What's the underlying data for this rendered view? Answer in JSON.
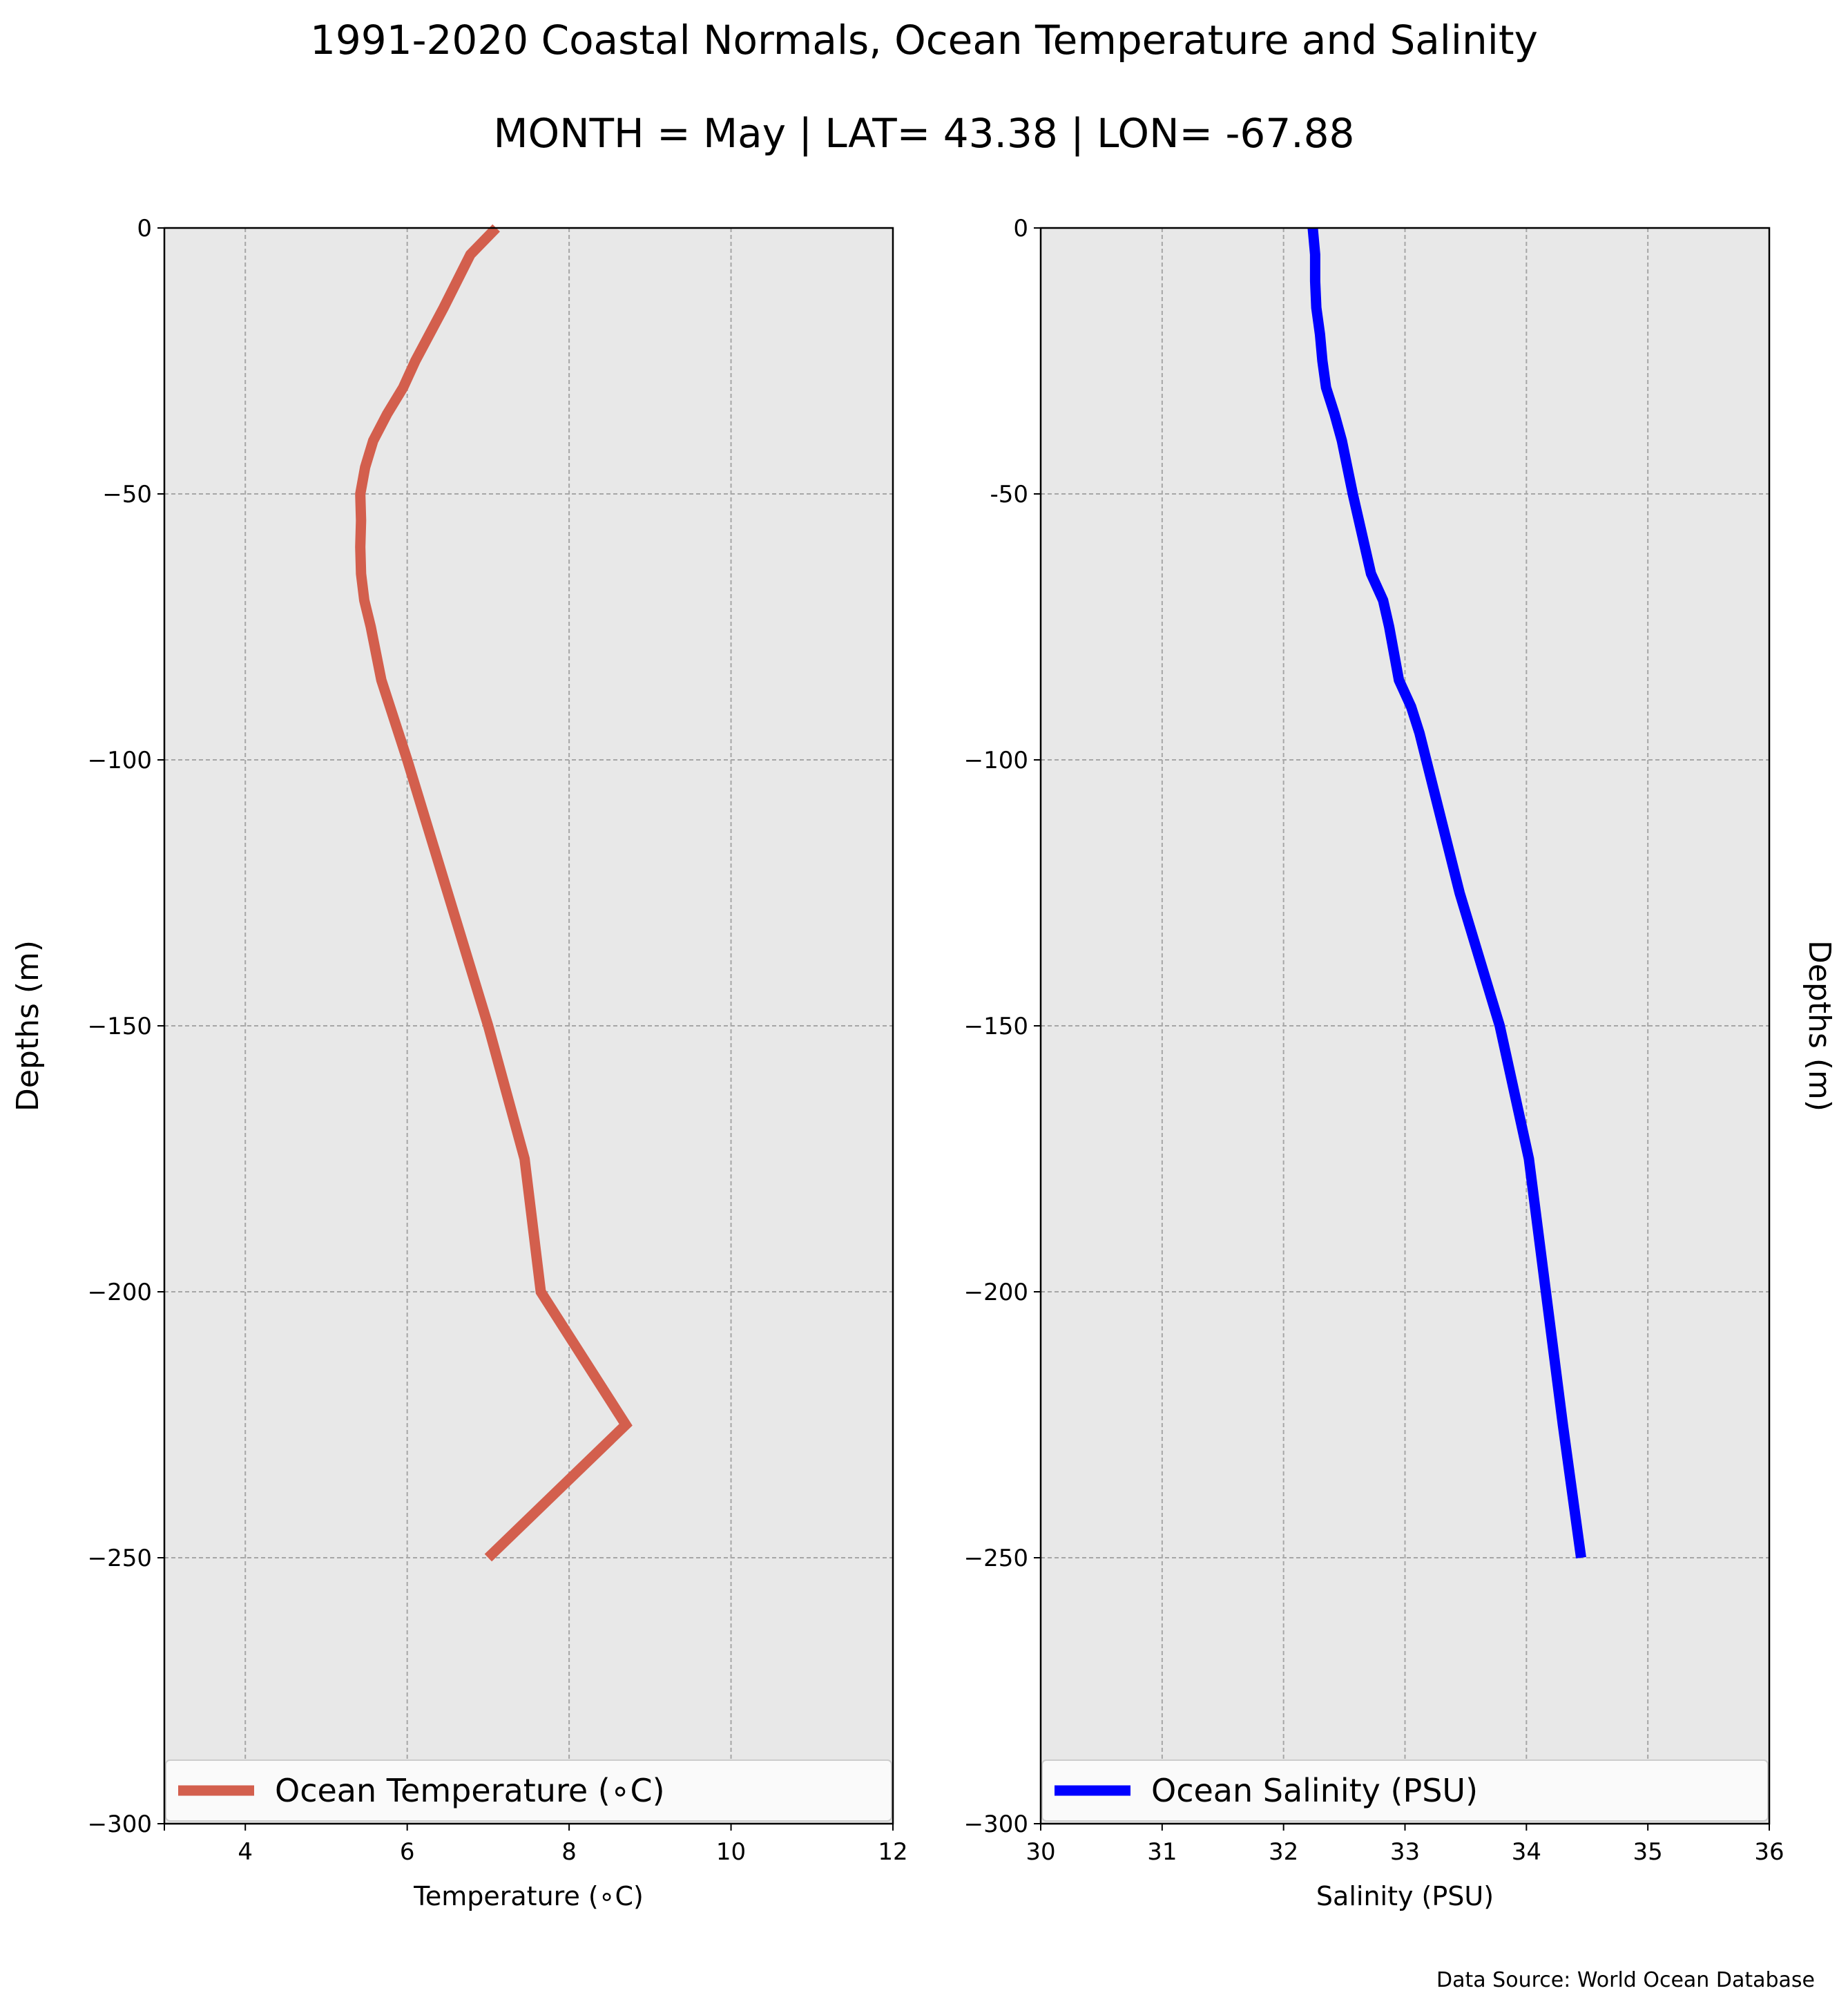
{
  "title_line1": "1991-2020 Coastal Normals, Ocean Temperature and Salinity",
  "title_line2": "MONTH = May | LAT= 43.38 | LON= -67.88",
  "source": "Data Source: World Ocean Database",
  "chart_data": [
    {
      "type": "line",
      "xlabel": "Temperature (∘C)",
      "ylabel": "Depths (m)",
      "xlim": [
        3,
        12
      ],
      "ylim": [
        -300,
        0
      ],
      "xticks": [
        4,
        6,
        8,
        10,
        12
      ],
      "yticks": [
        0,
        -50,
        -100,
        -150,
        -200,
        -250,
        -300
      ],
      "xtick_labels": [
        "4",
        "6",
        "8",
        "10",
        "12"
      ],
      "ytick_labels": [
        "0",
        "−50",
        "−100",
        "−150",
        "−200",
        "−250",
        "−300"
      ],
      "grid": true,
      "legend": "lower-center",
      "color": "#d35f4d",
      "series": [
        {
          "name": "Ocean Temperature (∘C)",
          "x": [
            7.1,
            6.78,
            6.45,
            6.1,
            5.95,
            5.75,
            5.58,
            5.48,
            5.42,
            5.43,
            5.42,
            5.43,
            5.47,
            5.55,
            5.68,
            6.0,
            6.5,
            7.0,
            7.45,
            7.65,
            8.7,
            7.0
          ],
          "y": [
            0,
            -5,
            -15,
            -25,
            -30,
            -35,
            -40,
            -45,
            -50,
            -55,
            -60,
            -65,
            -70,
            -75,
            -85,
            -100,
            -125,
            -150,
            -175,
            -200,
            -225,
            -250
          ]
        }
      ]
    },
    {
      "type": "line",
      "xlabel": "Salinity (PSU)",
      "ylabel": "Depths (m)",
      "xlim": [
        30,
        36
      ],
      "ylim": [
        -300,
        0
      ],
      "xticks": [
        30,
        31,
        32,
        33,
        34,
        35,
        36
      ],
      "yticks": [
        0,
        -50,
        -100,
        -150,
        -200,
        -250,
        -300
      ],
      "xtick_labels": [
        "30",
        "31",
        "32",
        "33",
        "34",
        "35",
        "36"
      ],
      "ytick_labels": [
        "0",
        "-50",
        "−100",
        "−150",
        "−200",
        "−250",
        "−300"
      ],
      "grid": true,
      "legend": "lower-center",
      "color": "#0000ff",
      "series": [
        {
          "name": "Ocean Salinity (PSU)",
          "x": [
            32.24,
            32.26,
            32.26,
            32.27,
            32.3,
            32.32,
            32.35,
            32.42,
            32.48,
            32.57,
            32.67,
            32.72,
            32.82,
            32.87,
            32.95,
            33.05,
            33.12,
            33.45,
            33.78,
            34.02,
            34.3,
            34.45
          ],
          "y": [
            0,
            -5,
            -10,
            -15,
            -20,
            -25,
            -30,
            -35,
            -40,
            -50,
            -60,
            -65,
            -70,
            -75,
            -85,
            -90,
            -95,
            -125,
            -150,
            -175,
            -225,
            -250
          ]
        }
      ]
    }
  ]
}
